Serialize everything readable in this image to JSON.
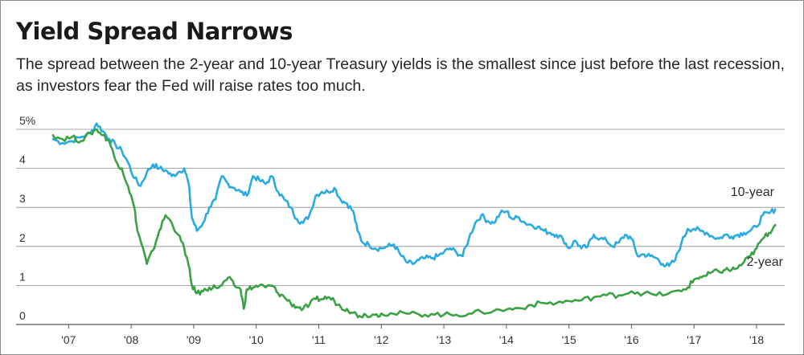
{
  "chart_data": {
    "type": "line",
    "title": "Yield Spread Narrows",
    "subtitle": "The spread between the 2-year and 10-year Treasury yields is the smallest since just before the last recession, as investors fear the Fed will raise rates too much.",
    "xlabel": "",
    "ylabel": "",
    "xlim": [
      2006.7,
      2018.45
    ],
    "ylim": [
      0,
      5
    ],
    "y_ticks": [
      {
        "value": 0,
        "label": "0"
      },
      {
        "value": 1,
        "label": "1"
      },
      {
        "value": 2,
        "label": "2"
      },
      {
        "value": 3,
        "label": "3"
      },
      {
        "value": 4,
        "label": "4"
      },
      {
        "value": 5,
        "label": "5%"
      }
    ],
    "x_ticks": [
      {
        "value": 2007,
        "label": "'07"
      },
      {
        "value": 2008,
        "label": "'08"
      },
      {
        "value": 2009,
        "label": "'09"
      },
      {
        "value": 2010,
        "label": "'10"
      },
      {
        "value": 2011,
        "label": "'11"
      },
      {
        "value": 2012,
        "label": "'12"
      },
      {
        "value": 2013,
        "label": "'13"
      },
      {
        "value": 2014,
        "label": "'14"
      },
      {
        "value": 2015,
        "label": "'15"
      },
      {
        "value": 2016,
        "label": "'16"
      },
      {
        "value": 2017,
        "label": "'17"
      },
      {
        "value": 2018,
        "label": "'18"
      }
    ],
    "grid": true,
    "series": [
      {
        "name": "10-year",
        "color": "#29abe2",
        "x": [
          2006.75,
          2006.9,
          2007.05,
          2007.2,
          2007.35,
          2007.45,
          2007.55,
          2007.65,
          2007.75,
          2007.85,
          2007.95,
          2008.05,
          2008.15,
          2008.25,
          2008.35,
          2008.45,
          2008.55,
          2008.65,
          2008.75,
          2008.85,
          2008.92,
          2008.97,
          2009.05,
          2009.15,
          2009.25,
          2009.35,
          2009.45,
          2009.55,
          2009.65,
          2009.75,
          2009.85,
          2009.95,
          2010.05,
          2010.15,
          2010.25,
          2010.35,
          2010.45,
          2010.55,
          2010.65,
          2010.75,
          2010.85,
          2010.95,
          2011.05,
          2011.15,
          2011.25,
          2011.35,
          2011.45,
          2011.55,
          2011.62,
          2011.7,
          2011.8,
          2011.9,
          2012.0,
          2012.1,
          2012.2,
          2012.3,
          2012.4,
          2012.5,
          2012.6,
          2012.7,
          2012.8,
          2012.9,
          2013.0,
          2013.1,
          2013.2,
          2013.3,
          2013.4,
          2013.5,
          2013.6,
          2013.7,
          2013.8,
          2013.9,
          2014.0,
          2014.1,
          2014.2,
          2014.3,
          2014.4,
          2014.5,
          2014.6,
          2014.7,
          2014.8,
          2014.9,
          2015.0,
          2015.1,
          2015.2,
          2015.3,
          2015.4,
          2015.5,
          2015.6,
          2015.7,
          2015.8,
          2015.9,
          2016.0,
          2016.1,
          2016.2,
          2016.3,
          2016.4,
          2016.5,
          2016.6,
          2016.7,
          2016.8,
          2016.9,
          2017.0,
          2017.1,
          2017.2,
          2017.3,
          2017.4,
          2017.5,
          2017.6,
          2017.7,
          2017.8,
          2017.9,
          2018.0,
          2018.1,
          2018.2,
          2018.3
        ],
        "values": [
          4.75,
          4.65,
          4.7,
          4.8,
          4.9,
          5.15,
          4.95,
          4.75,
          4.6,
          4.45,
          4.15,
          3.75,
          3.55,
          3.9,
          4.1,
          4.0,
          3.95,
          3.8,
          3.9,
          4.0,
          3.6,
          2.75,
          2.4,
          2.6,
          3.0,
          3.2,
          3.8,
          3.6,
          3.5,
          3.4,
          3.3,
          3.8,
          3.7,
          3.6,
          3.8,
          3.4,
          3.2,
          3.0,
          2.7,
          2.6,
          2.8,
          3.3,
          3.4,
          3.4,
          3.5,
          3.2,
          3.1,
          2.9,
          2.4,
          2.1,
          2.05,
          1.95,
          1.95,
          2.0,
          2.05,
          1.8,
          1.6,
          1.55,
          1.65,
          1.7,
          1.7,
          1.75,
          1.85,
          1.95,
          1.85,
          1.75,
          2.2,
          2.6,
          2.8,
          2.65,
          2.6,
          2.85,
          2.9,
          2.7,
          2.75,
          2.6,
          2.55,
          2.5,
          2.4,
          2.35,
          2.3,
          2.2,
          1.95,
          2.15,
          1.95,
          2.0,
          2.3,
          2.2,
          2.15,
          2.0,
          2.1,
          2.3,
          2.2,
          1.75,
          1.8,
          1.75,
          1.7,
          1.55,
          1.5,
          1.65,
          2.1,
          2.45,
          2.45,
          2.4,
          2.35,
          2.25,
          2.2,
          2.3,
          2.25,
          2.3,
          2.35,
          2.4,
          2.5,
          2.8,
          2.85,
          2.95
        ]
      },
      {
        "name": "2-year",
        "color": "#3aa144",
        "x": [
          2006.75,
          2006.9,
          2007.05,
          2007.2,
          2007.35,
          2007.45,
          2007.55,
          2007.65,
          2007.75,
          2007.85,
          2007.95,
          2008.05,
          2008.1,
          2008.18,
          2008.25,
          2008.35,
          2008.45,
          2008.55,
          2008.65,
          2008.75,
          2008.85,
          2008.92,
          2008.97,
          2009.05,
          2009.15,
          2009.25,
          2009.35,
          2009.45,
          2009.55,
          2009.65,
          2009.75,
          2009.8,
          2009.85,
          2009.95,
          2010.05,
          2010.15,
          2010.25,
          2010.35,
          2010.45,
          2010.55,
          2010.65,
          2010.75,
          2010.85,
          2010.95,
          2011.05,
          2011.15,
          2011.25,
          2011.35,
          2011.45,
          2011.55,
          2011.65,
          2011.75,
          2011.9,
          2012.0,
          2012.2,
          2012.4,
          2012.6,
          2012.8,
          2013.0,
          2013.2,
          2013.4,
          2013.6,
          2013.8,
          2014.0,
          2014.2,
          2014.4,
          2014.6,
          2014.8,
          2015.0,
          2015.2,
          2015.4,
          2015.6,
          2015.8,
          2016.0,
          2016.2,
          2016.4,
          2016.6,
          2016.8,
          2016.9,
          2017.0,
          2017.1,
          2017.2,
          2017.3,
          2017.4,
          2017.5,
          2017.6,
          2017.7,
          2017.8,
          2017.9,
          2018.0,
          2018.1,
          2018.2,
          2018.3
        ],
        "values": [
          4.85,
          4.75,
          4.8,
          4.7,
          4.9,
          5.0,
          4.85,
          4.7,
          4.2,
          4.0,
          3.55,
          3.0,
          2.4,
          2.0,
          1.55,
          1.9,
          2.4,
          2.8,
          2.6,
          2.3,
          1.95,
          1.5,
          1.0,
          0.8,
          0.85,
          0.95,
          0.95,
          1.0,
          1.2,
          1.0,
          0.9,
          0.4,
          0.9,
          0.95,
          1.0,
          0.95,
          1.0,
          0.8,
          0.7,
          0.55,
          0.45,
          0.4,
          0.5,
          0.65,
          0.65,
          0.7,
          0.6,
          0.45,
          0.4,
          0.3,
          0.22,
          0.25,
          0.25,
          0.28,
          0.27,
          0.28,
          0.26,
          0.27,
          0.25,
          0.25,
          0.28,
          0.32,
          0.35,
          0.38,
          0.42,
          0.5,
          0.55,
          0.55,
          0.6,
          0.62,
          0.7,
          0.75,
          0.75,
          0.85,
          0.8,
          0.75,
          0.8,
          0.85,
          0.95,
          1.15,
          1.22,
          1.25,
          1.35,
          1.35,
          1.4,
          1.4,
          1.45,
          1.6,
          1.75,
          1.95,
          2.2,
          2.35,
          2.55
        ]
      }
    ]
  }
}
